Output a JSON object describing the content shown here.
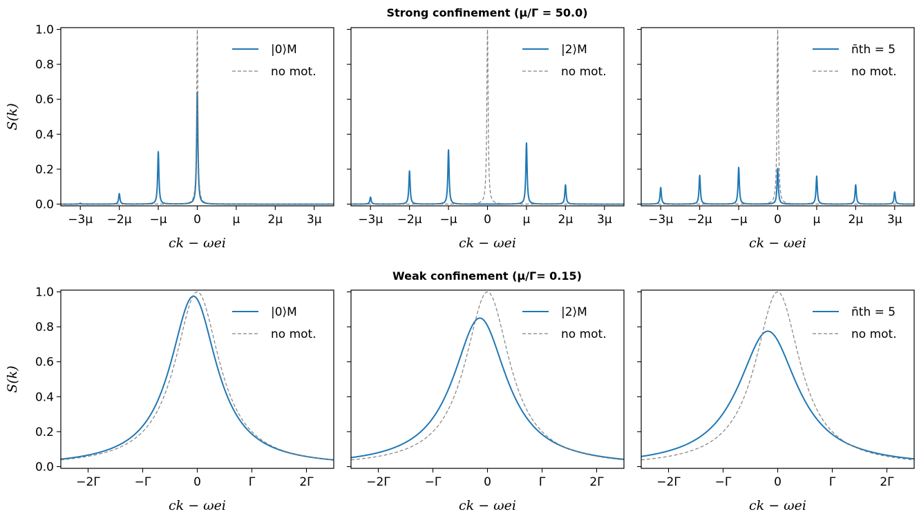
{
  "figure_rows": [
    {
      "title": "Strong confinement (μ/Γ = 50.0)"
    },
    {
      "title": "Weak confinement (μ/Γ= 0.15)"
    }
  ],
  "chart_data": [
    {
      "type": "line",
      "row": 0,
      "col": 0,
      "xlabel": "ck − ωei",
      "ylabel": "S(k)",
      "xunit": "μ",
      "xlim": [
        -3.5,
        3.5
      ],
      "ylim": [
        -0.01,
        1.01
      ],
      "xticks": [
        -3,
        -2,
        -1,
        0,
        1,
        2,
        3
      ],
      "xtick_labels": [
        "−3μ",
        "−2μ",
        "−μ",
        "0",
        "μ",
        "2μ",
        "3μ"
      ],
      "yticks": [
        0.0,
        0.2,
        0.4,
        0.6,
        0.8,
        1.0
      ],
      "ytick_labels": [
        "0.0",
        "0.2",
        "0.4",
        "0.6",
        "0.8",
        "1.0"
      ],
      "legend_position": "top-right",
      "series": [
        {
          "name": "|0⟩M",
          "style": "solid",
          "color": "#1f77b4",
          "shape": "peaks",
          "width": 0.02,
          "peaks": [
            {
              "x": -3,
              "y": 0.005
            },
            {
              "x": -2,
              "y": 0.06
            },
            {
              "x": -1,
              "y": 0.3
            },
            {
              "x": 0,
              "y": 0.64
            }
          ]
        },
        {
          "name": "no mot.",
          "style": "dashed",
          "color": "#808080",
          "shape": "peaks",
          "width": 0.02,
          "peaks": [
            {
              "x": 0,
              "y": 1.0
            }
          ]
        }
      ]
    },
    {
      "type": "line",
      "row": 0,
      "col": 1,
      "xlabel": "ck − ωei",
      "ylabel": "",
      "xunit": "μ",
      "xlim": [
        -3.5,
        3.5
      ],
      "ylim": [
        -0.01,
        1.01
      ],
      "xticks": [
        -3,
        -2,
        -1,
        0,
        1,
        2,
        3
      ],
      "xtick_labels": [
        "−3μ",
        "−2μ",
        "−μ",
        "0",
        "μ",
        "2μ",
        "3μ"
      ],
      "yticks": [
        0.0,
        0.2,
        0.4,
        0.6,
        0.8,
        1.0
      ],
      "ytick_labels": [],
      "legend_position": "top-right",
      "series": [
        {
          "name": "|2⟩M",
          "style": "solid",
          "color": "#1f77b4",
          "shape": "peaks",
          "width": 0.02,
          "peaks": [
            {
              "x": -3,
              "y": 0.04
            },
            {
              "x": -2,
              "y": 0.19
            },
            {
              "x": -1,
              "y": 0.31
            },
            {
              "x": 1,
              "y": 0.35
            },
            {
              "x": 2,
              "y": 0.11
            }
          ]
        },
        {
          "name": "no mot.",
          "style": "dashed",
          "color": "#808080",
          "shape": "peaks",
          "width": 0.02,
          "peaks": [
            {
              "x": 0,
              "y": 1.0
            }
          ]
        }
      ]
    },
    {
      "type": "line",
      "row": 0,
      "col": 2,
      "xlabel": "ck − ωei",
      "ylabel": "",
      "xunit": "μ",
      "xlim": [
        -3.5,
        3.5
      ],
      "ylim": [
        -0.01,
        1.01
      ],
      "xticks": [
        -3,
        -2,
        -1,
        0,
        1,
        2,
        3
      ],
      "xtick_labels": [
        "−3μ",
        "−2μ",
        "−μ",
        "0",
        "μ",
        "2μ",
        "3μ"
      ],
      "yticks": [
        0.0,
        0.2,
        0.4,
        0.6,
        0.8,
        1.0
      ],
      "ytick_labels": [],
      "legend_position": "top-right",
      "series": [
        {
          "name": "n̄th = 5",
          "style": "solid",
          "color": "#1f77b4",
          "shape": "peaks",
          "width": 0.02,
          "peaks": [
            {
              "x": -3,
              "y": 0.095
            },
            {
              "x": -2,
              "y": 0.165
            },
            {
              "x": -1,
              "y": 0.21
            },
            {
              "x": 0,
              "y": 0.205
            },
            {
              "x": 1,
              "y": 0.16
            },
            {
              "x": 2,
              "y": 0.11
            },
            {
              "x": 3,
              "y": 0.07
            }
          ]
        },
        {
          "name": "no mot.",
          "style": "dashed",
          "color": "#808080",
          "shape": "peaks",
          "width": 0.02,
          "peaks": [
            {
              "x": 0,
              "y": 1.0
            }
          ]
        }
      ]
    },
    {
      "type": "line",
      "row": 1,
      "col": 0,
      "xlabel": "ck − ωei",
      "ylabel": "S(k)",
      "xunit": "Γ",
      "xlim": [
        -2.5,
        2.5
      ],
      "ylim": [
        -0.01,
        1.01
      ],
      "xticks": [
        -2,
        -1,
        0,
        1,
        2
      ],
      "xtick_labels": [
        "−2Γ",
        "−Γ",
        "0",
        "Γ",
        "2Γ"
      ],
      "yticks": [
        0.0,
        0.2,
        0.4,
        0.6,
        0.8,
        1.0
      ],
      "ytick_labels": [
        "0.0",
        "0.2",
        "0.4",
        "0.6",
        "0.8",
        "1.0"
      ],
      "legend_position": "top-right",
      "series": [
        {
          "name": "|0⟩M",
          "style": "solid",
          "color": "#1f77b4",
          "shape": "lorentzian",
          "center": -0.07,
          "width": 0.52,
          "peak": 0.975
        },
        {
          "name": "no mot.",
          "style": "dashed",
          "color": "#808080",
          "shape": "lorentzian",
          "center": 0.0,
          "width": 0.5,
          "peak": 1.0
        }
      ]
    },
    {
      "type": "line",
      "row": 1,
      "col": 1,
      "xlabel": "ck − ωei",
      "ylabel": "",
      "xunit": "Γ",
      "xlim": [
        -2.5,
        2.5
      ],
      "ylim": [
        -0.01,
        1.01
      ],
      "xticks": [
        -2,
        -1,
        0,
        1,
        2
      ],
      "xtick_labels": [
        "−2Γ",
        "−Γ",
        "0",
        "Γ",
        "2Γ"
      ],
      "yticks": [
        0.0,
        0.2,
        0.4,
        0.6,
        0.8,
        1.0
      ],
      "ytick_labels": [],
      "legend_position": "top-right",
      "series": [
        {
          "name": "|2⟩M",
          "style": "solid",
          "color": "#1f77b4",
          "shape": "lorentzian",
          "center": -0.14,
          "width": 0.6,
          "peak": 0.85
        },
        {
          "name": "no mot.",
          "style": "dashed",
          "color": "#808080",
          "shape": "lorentzian",
          "center": 0.0,
          "width": 0.5,
          "peak": 1.0
        }
      ]
    },
    {
      "type": "line",
      "row": 1,
      "col": 2,
      "xlabel": "ck − ωei",
      "ylabel": "",
      "xunit": "Γ",
      "xlim": [
        -2.5,
        2.5
      ],
      "ylim": [
        -0.01,
        1.01
      ],
      "xticks": [
        -2,
        -1,
        0,
        1,
        2
      ],
      "xtick_labels": [
        "−2Γ",
        "−Γ",
        "0",
        "Γ",
        "2Γ"
      ],
      "yticks": [
        0.0,
        0.2,
        0.4,
        0.6,
        0.8,
        1.0
      ],
      "ytick_labels": [],
      "legend_position": "top-right",
      "series": [
        {
          "name": "n̄th = 5",
          "style": "solid",
          "color": "#1f77b4",
          "shape": "lorentzian",
          "center": -0.18,
          "width": 0.66,
          "peak": 0.775
        },
        {
          "name": "no mot.",
          "style": "dashed",
          "color": "#808080",
          "shape": "lorentzian",
          "center": 0.0,
          "width": 0.5,
          "peak": 1.0
        }
      ]
    }
  ]
}
